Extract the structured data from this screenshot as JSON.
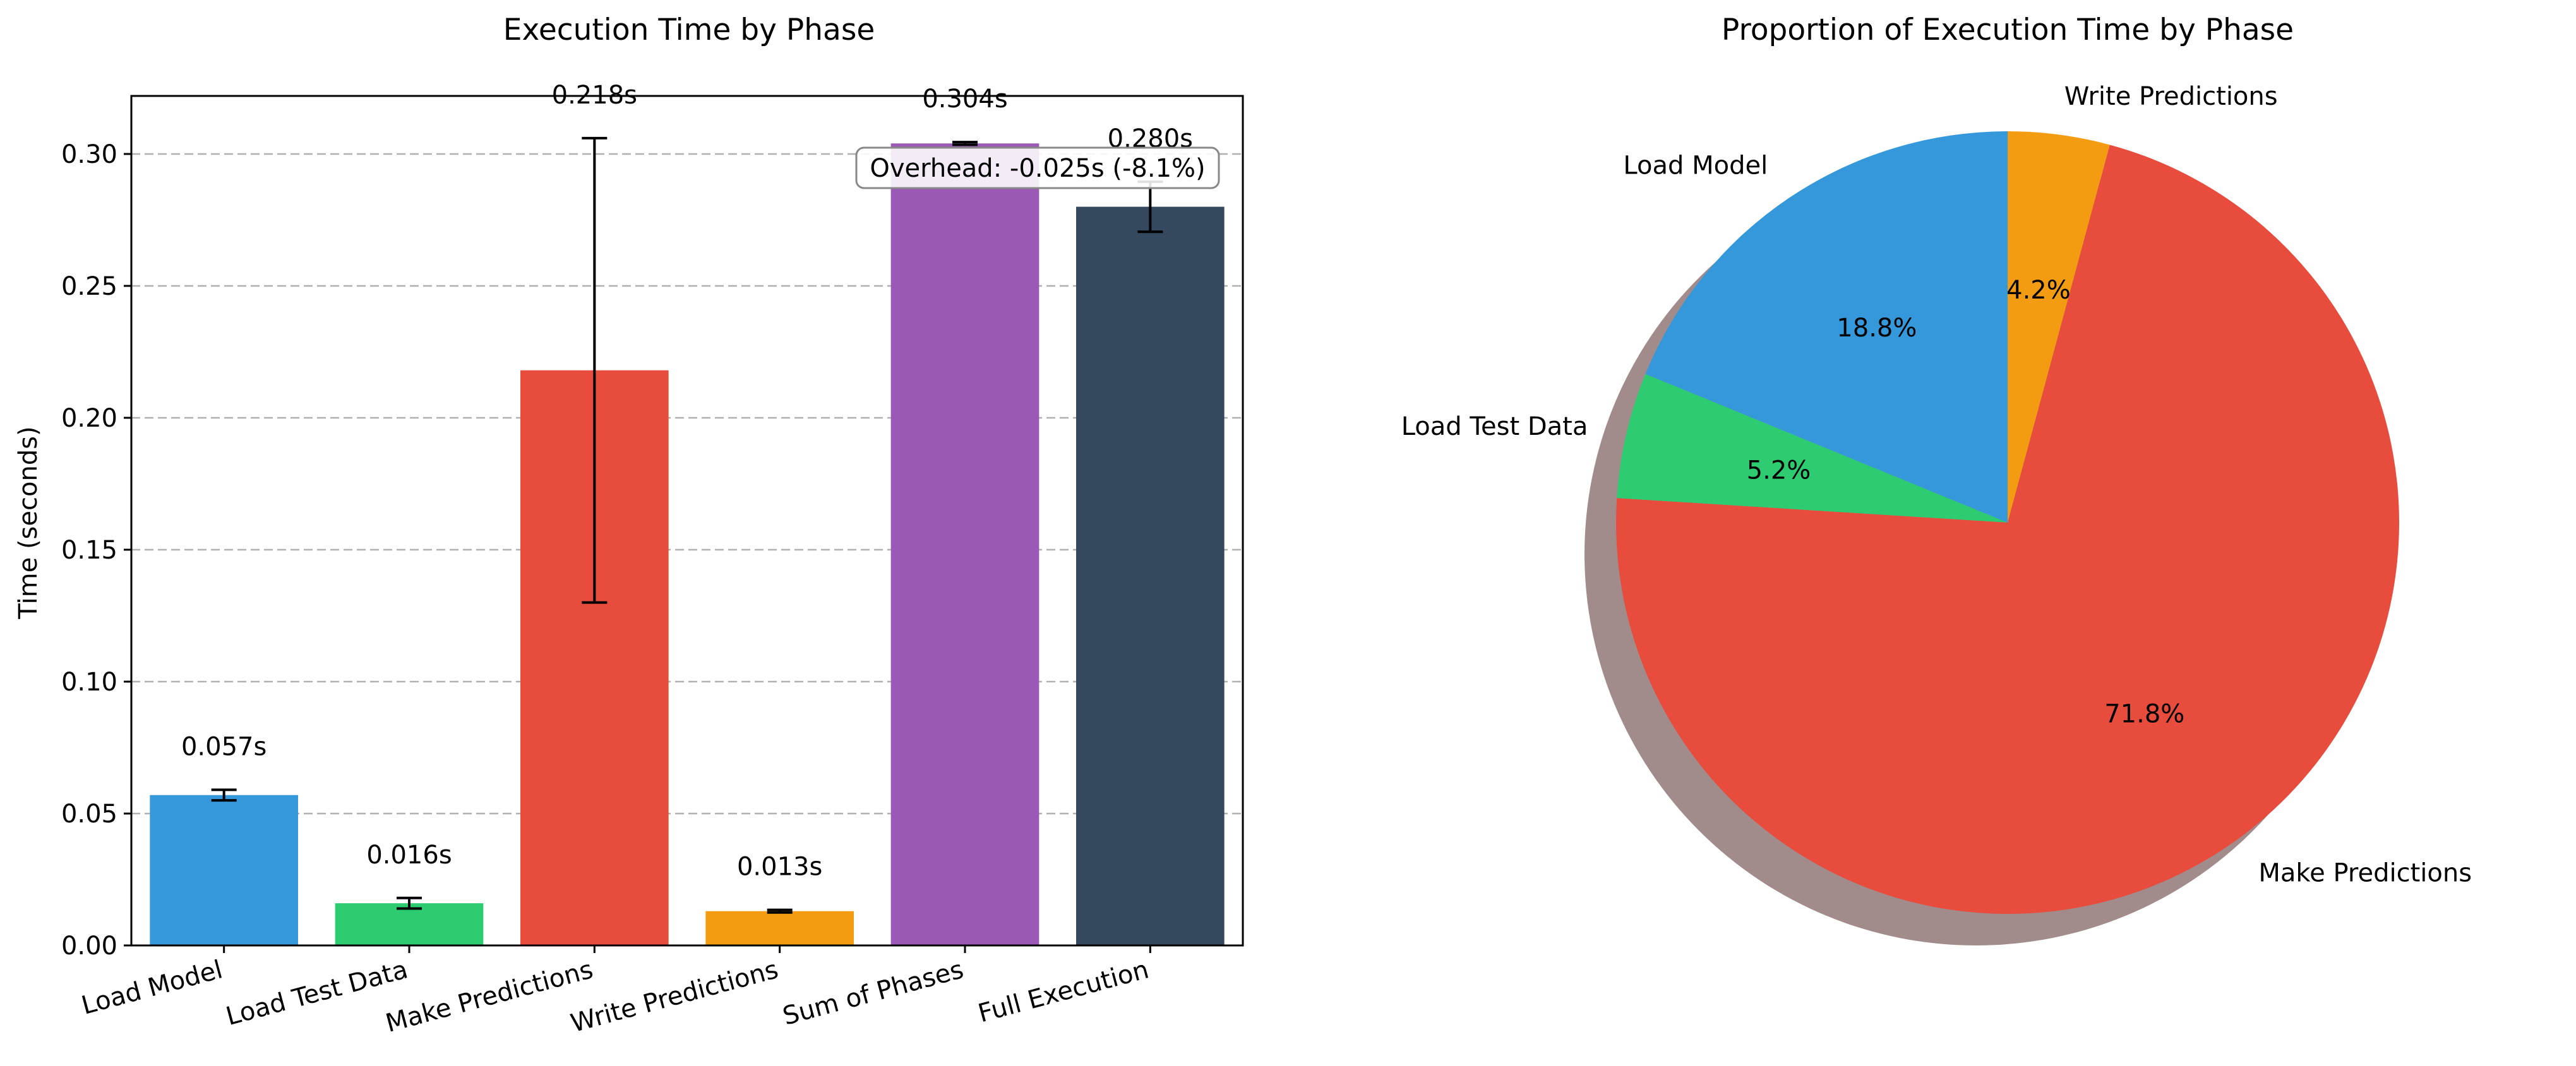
{
  "chart_data": [
    {
      "type": "bar",
      "title": "Execution Time by Phase",
      "ylabel": "Time (seconds)",
      "xlabel": "",
      "ylim": [
        0,
        0.322
      ],
      "yticks": [
        0.0,
        0.05,
        0.1,
        0.15,
        0.2,
        0.25,
        0.3
      ],
      "ytick_labels": [
        "0.00",
        "0.05",
        "0.10",
        "0.15",
        "0.20",
        "0.25",
        "0.30"
      ],
      "grid": "y, dashed",
      "categories": [
        "Load Model",
        "Load Test Data",
        "Make Predictions",
        "Write Predictions",
        "Sum of Phases",
        "Full Execution"
      ],
      "values": [
        0.057,
        0.016,
        0.218,
        0.013,
        0.304,
        0.28
      ],
      "errors": [
        0.002,
        0.002,
        0.088,
        0.0005,
        0.0005,
        0.0095
      ],
      "value_labels": [
        "0.057s",
        "0.016s",
        "0.218s",
        "0.013s",
        "0.304s",
        "0.280s"
      ],
      "colors": [
        "#3498db",
        "#2ecc71",
        "#e74c3c",
        "#f39c12",
        "#9b59b6",
        "#34495e"
      ],
      "annotation": "Overhead: -0.025s (-8.1%)"
    },
    {
      "type": "pie",
      "title": "Proportion of Execution Time by Phase",
      "labels": [
        "Write Predictions",
        "Make Predictions",
        "Load Test Data",
        "Load Model"
      ],
      "values": [
        4.2,
        71.8,
        5.2,
        18.8
      ],
      "pct_labels": [
        "4.2%",
        "71.8%",
        "5.2%",
        "18.8%"
      ],
      "colors": [
        "#f39c12",
        "#e74c3c",
        "#2ecc71",
        "#3498db"
      ],
      "shadow": true,
      "start_angle": 90,
      "direction": "clockwise"
    }
  ]
}
